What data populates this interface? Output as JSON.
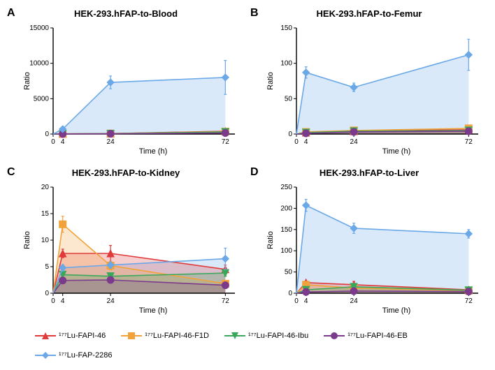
{
  "series": [
    {
      "id": "s0",
      "label": "¹⁷⁷Lu-FAPI-46",
      "color": "#e03a3a",
      "marker": "triangle-up"
    },
    {
      "id": "s1",
      "label": "¹⁷⁷Lu-FAPI-46-F1D",
      "color": "#f2a23a",
      "marker": "square"
    },
    {
      "id": "s2",
      "label": "¹⁷⁷Lu-FAPI-46-Ibu",
      "color": "#3aa85a",
      "marker": "triangle-down"
    },
    {
      "id": "s3",
      "label": "¹⁷⁷Lu-FAPI-46-EB",
      "color": "#7c3a8c",
      "marker": "circle"
    },
    {
      "id": "s4",
      "label": "¹⁷⁷Lu-FAP-2286",
      "color": "#6aa8e8",
      "marker": "diamond"
    }
  ],
  "style": {
    "axis_color": "#000000",
    "tick_fontsize": 10,
    "axis_label_fontsize": 11,
    "title_fontsize": 13,
    "letter_fontsize": 16,
    "line_width": 1.6,
    "marker_size": 5,
    "area_opacity": 0.25,
    "errorbar_width": 1.2,
    "errorbar_cap": 4
  },
  "x": {
    "label": "Time (h)",
    "lim": [
      0,
      76
    ],
    "ticks": [
      0,
      4,
      24,
      72
    ]
  },
  "panels": [
    {
      "letter": "A",
      "title": "HEK-293.hFAP-to-Blood",
      "ylabel": "Ratio",
      "ylim": [
        0,
        15000
      ],
      "yticks": [
        0,
        5000,
        10000,
        15000
      ],
      "data": {
        "s0": {
          "x": [
            4,
            24,
            72
          ],
          "y": [
            20,
            60,
            400
          ],
          "err": [
            15,
            20,
            120
          ]
        },
        "s1": {
          "x": [
            4,
            24,
            72
          ],
          "y": [
            30,
            70,
            350
          ],
          "err": [
            15,
            20,
            100
          ]
        },
        "s2": {
          "x": [
            4,
            24,
            72
          ],
          "y": [
            25,
            55,
            300
          ],
          "err": [
            15,
            20,
            90
          ]
        },
        "s3": {
          "x": [
            4,
            24,
            72
          ],
          "y": [
            15,
            40,
            150
          ],
          "err": [
            10,
            15,
            60
          ]
        },
        "s4": {
          "x": [
            4,
            24,
            72
          ],
          "y": [
            700,
            7300,
            8000
          ],
          "err": [
            200,
            900,
            2400
          ]
        }
      }
    },
    {
      "letter": "B",
      "title": "HEK-293.hFAP-to-Femur",
      "ylabel": "Ratio",
      "ylim": [
        0,
        150
      ],
      "yticks": [
        0,
        50,
        100,
        150
      ],
      "data": {
        "s0": {
          "x": [
            4,
            24,
            72
          ],
          "y": [
            2,
            4,
            6
          ],
          "err": [
            1,
            1,
            2
          ]
        },
        "s1": {
          "x": [
            4,
            24,
            72
          ],
          "y": [
            3,
            5,
            8
          ],
          "err": [
            1,
            1,
            2
          ]
        },
        "s2": {
          "x": [
            4,
            24,
            72
          ],
          "y": [
            2,
            4,
            5
          ],
          "err": [
            1,
            1,
            1
          ]
        },
        "s3": {
          "x": [
            4,
            24,
            72
          ],
          "y": [
            1,
            3,
            4
          ],
          "err": [
            1,
            1,
            1
          ]
        },
        "s4": {
          "x": [
            4,
            24,
            72
          ],
          "y": [
            87,
            66,
            112
          ],
          "err": [
            8,
            6,
            22
          ]
        }
      }
    },
    {
      "letter": "C",
      "title": "HEK-293.hFAP-to-Kidney",
      "ylabel": "Ratio",
      "ylim": [
        0,
        20
      ],
      "yticks": [
        0,
        5,
        10,
        15,
        20
      ],
      "data": {
        "s0": {
          "x": [
            4,
            24,
            72
          ],
          "y": [
            7.5,
            7.5,
            4.5
          ],
          "err": [
            0.8,
            1.5,
            0.8
          ]
        },
        "s1": {
          "x": [
            4,
            24,
            72
          ],
          "y": [
            13.0,
            5.2,
            1.8
          ],
          "err": [
            1.5,
            0.8,
            0.5
          ]
        },
        "s2": {
          "x": [
            4,
            24,
            72
          ],
          "y": [
            3.5,
            3.2,
            3.8
          ],
          "err": [
            0.5,
            0.5,
            0.6
          ]
        },
        "s3": {
          "x": [
            4,
            24,
            72
          ],
          "y": [
            2.4,
            2.5,
            1.5
          ],
          "err": [
            0.4,
            0.4,
            0.4
          ]
        },
        "s4": {
          "x": [
            4,
            24,
            72
          ],
          "y": [
            4.8,
            5.3,
            6.5
          ],
          "err": [
            0.6,
            0.6,
            2.0
          ]
        }
      }
    },
    {
      "letter": "D",
      "title": "HEK-293.hFAP-to-Liver",
      "ylabel": "Ratio",
      "ylim": [
        0,
        250
      ],
      "yticks": [
        0,
        50,
        100,
        150,
        200,
        250
      ],
      "data": {
        "s0": {
          "x": [
            4,
            24,
            72
          ],
          "y": [
            25,
            20,
            8
          ],
          "err": [
            3,
            8,
            3
          ]
        },
        "s1": {
          "x": [
            4,
            24,
            72
          ],
          "y": [
            20,
            12,
            6
          ],
          "err": [
            3,
            4,
            2
          ]
        },
        "s2": {
          "x": [
            4,
            24,
            72
          ],
          "y": [
            8,
            15,
            7
          ],
          "err": [
            2,
            6,
            2
          ]
        },
        "s3": {
          "x": [
            4,
            24,
            72
          ],
          "y": [
            3,
            5,
            4
          ],
          "err": [
            1,
            1,
            1
          ]
        },
        "s4": {
          "x": [
            4,
            24,
            72
          ],
          "y": [
            207,
            153,
            140
          ],
          "err": [
            14,
            12,
            10
          ]
        }
      }
    }
  ]
}
